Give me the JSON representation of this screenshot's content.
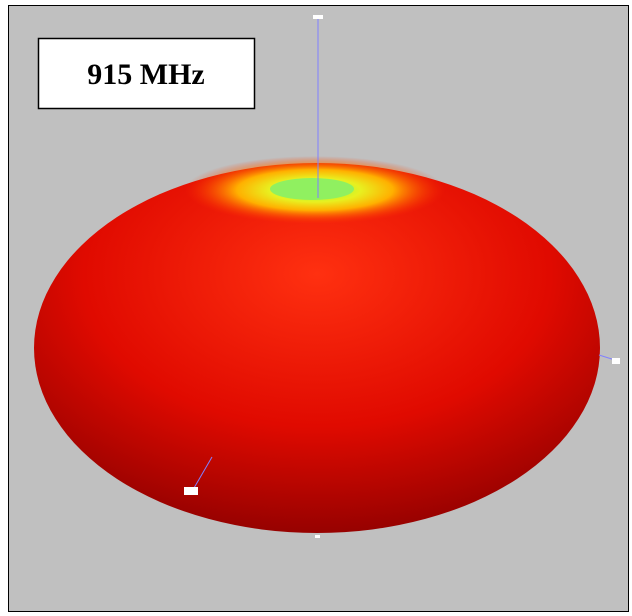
{
  "label": "915 MHz"
}
